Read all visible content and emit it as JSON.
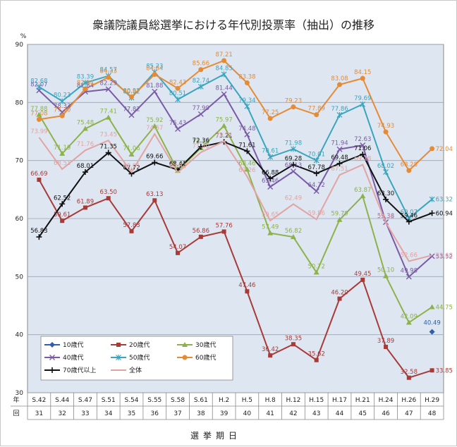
{
  "chart_data": {
    "type": "line",
    "title": "衆議院議員総選挙における年代別投票率（抽出）の推移",
    "yunit": "%",
    "ylim": [
      30,
      90
    ],
    "yticks": [
      30,
      40,
      50,
      60,
      70,
      80,
      90
    ],
    "grid": true,
    "legend_position": "bottom-left",
    "row_headers": [
      "年",
      "回"
    ],
    "xlabel": "選挙期日",
    "categories": [
      "S.42",
      "S.44",
      "S.47",
      "S.51",
      "S.54",
      "S.55",
      "S.58",
      "S.61",
      "H.2",
      "H.5",
      "H.8",
      "H.12",
      "H.15",
      "H.17",
      "H.21",
      "H.24",
      "H.26",
      "H.29"
    ],
    "sessions": [
      "31",
      "32",
      "33",
      "34",
      "35",
      "36",
      "37",
      "38",
      "39",
      "40",
      "41",
      "42",
      "43",
      "44",
      "45",
      "46",
      "47",
      "48"
    ],
    "series": [
      {
        "name": "10歳代",
        "color": "#2e5fa8",
        "marker": "diamond",
        "values": [
          null,
          null,
          null,
          null,
          null,
          null,
          null,
          null,
          null,
          null,
          null,
          null,
          null,
          null,
          null,
          null,
          null,
          40.49
        ]
      },
      {
        "name": "20歳代",
        "color": "#a83a38",
        "marker": "square",
        "values": [
          66.69,
          59.61,
          61.89,
          63.5,
          57.83,
          63.13,
          54.07,
          56.86,
          57.76,
          47.46,
          36.42,
          38.35,
          35.62,
          46.2,
          49.45,
          37.89,
          32.58,
          33.85
        ]
      },
      {
        "name": "30歳代",
        "color": "#8db24a",
        "marker": "triangle",
        "values": [
          77.88,
          71.19,
          75.48,
          77.41,
          71.06,
          75.92,
          68.25,
          72.15,
          75.97,
          68.46,
          57.49,
          56.82,
          50.72,
          59.79,
          63.87,
          50.1,
          42.09,
          44.75
        ]
      },
      {
        "name": "40歳代",
        "color": "#7b5aa6",
        "marker": "x",
        "values": [
          82.07,
          78.33,
          81.84,
          82.29,
          77.82,
          81.88,
          75.43,
          77.99,
          81.44,
          74.48,
          65.46,
          68.13,
          64.72,
          71.94,
          72.63,
          59.38,
          49.98,
          53.52
        ]
      },
      {
        "name": "50歳代",
        "color": "#3aa5bd",
        "marker": "star",
        "values": [
          82.68,
          80.23,
          83.39,
          84.57,
          80.82,
          85.23,
          80.51,
          82.74,
          84.85,
          79.34,
          70.61,
          71.98,
          70.01,
          77.86,
          79.69,
          68.02,
          60.07,
          63.32
        ]
      },
      {
        "name": "60歳代",
        "color": "#e58b35",
        "marker": "circle",
        "values": [
          77.08,
          77.7,
          82.34,
          84.33,
          80.97,
          84.84,
          82.43,
          85.66,
          87.21,
          83.38,
          77.25,
          79.23,
          77.89,
          83.08,
          84.15,
          74.93,
          68.28,
          72.04
        ]
      },
      {
        "name": "70歳代以上",
        "color": "#111111",
        "marker": "plus",
        "values": [
          56.83,
          62.52,
          68.01,
          71.35,
          67.72,
          69.66,
          68.41,
          72.36,
          73.21,
          71.61,
          66.88,
          69.28,
          67.78,
          69.48,
          71.06,
          63.3,
          59.46,
          60.94
        ]
      },
      {
        "name": "全体",
        "color": "#e3a3a3",
        "marker": "none",
        "values": [
          73.99,
          68.51,
          71.76,
          73.45,
          68.01,
          74.57,
          67.94,
          71.4,
          73.31,
          67.26,
          59.65,
          62.49,
          59.86,
          67.51,
          69.28,
          59.32,
          52.66,
          53.68
        ]
      }
    ]
  }
}
